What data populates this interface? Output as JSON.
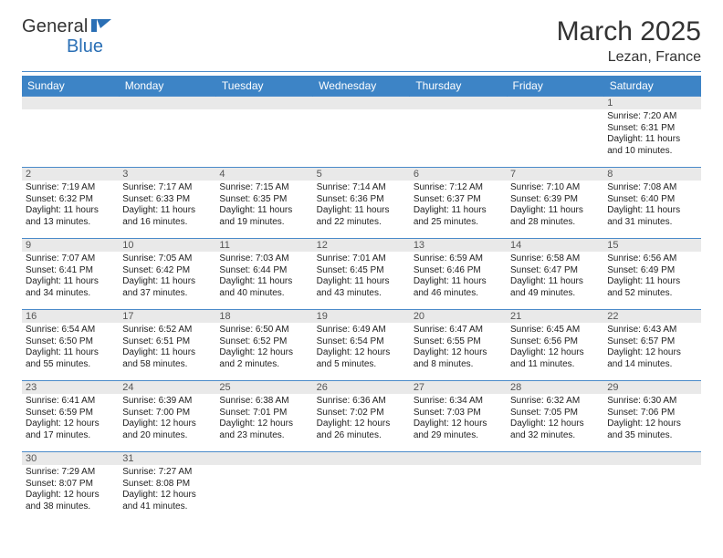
{
  "brand": {
    "part1": "General",
    "part2": "Blue"
  },
  "title": "March 2025",
  "location": "Lezan, France",
  "colors": {
    "header_bg": "#3d84c6",
    "border": "#4a8ac9",
    "daynum_bg": "#e9e9e9",
    "brand_blue": "#2a6fb5"
  },
  "weekdays": [
    "Sunday",
    "Monday",
    "Tuesday",
    "Wednesday",
    "Thursday",
    "Friday",
    "Saturday"
  ],
  "weeks": [
    [
      {
        "n": "",
        "sr": "",
        "ss": "",
        "dl": ""
      },
      {
        "n": "",
        "sr": "",
        "ss": "",
        "dl": ""
      },
      {
        "n": "",
        "sr": "",
        "ss": "",
        "dl": ""
      },
      {
        "n": "",
        "sr": "",
        "ss": "",
        "dl": ""
      },
      {
        "n": "",
        "sr": "",
        "ss": "",
        "dl": ""
      },
      {
        "n": "",
        "sr": "",
        "ss": "",
        "dl": ""
      },
      {
        "n": "1",
        "sr": "Sunrise: 7:20 AM",
        "ss": "Sunset: 6:31 PM",
        "dl": "Daylight: 11 hours and 10 minutes."
      }
    ],
    [
      {
        "n": "2",
        "sr": "Sunrise: 7:19 AM",
        "ss": "Sunset: 6:32 PM",
        "dl": "Daylight: 11 hours and 13 minutes."
      },
      {
        "n": "3",
        "sr": "Sunrise: 7:17 AM",
        "ss": "Sunset: 6:33 PM",
        "dl": "Daylight: 11 hours and 16 minutes."
      },
      {
        "n": "4",
        "sr": "Sunrise: 7:15 AM",
        "ss": "Sunset: 6:35 PM",
        "dl": "Daylight: 11 hours and 19 minutes."
      },
      {
        "n": "5",
        "sr": "Sunrise: 7:14 AM",
        "ss": "Sunset: 6:36 PM",
        "dl": "Daylight: 11 hours and 22 minutes."
      },
      {
        "n": "6",
        "sr": "Sunrise: 7:12 AM",
        "ss": "Sunset: 6:37 PM",
        "dl": "Daylight: 11 hours and 25 minutes."
      },
      {
        "n": "7",
        "sr": "Sunrise: 7:10 AM",
        "ss": "Sunset: 6:39 PM",
        "dl": "Daylight: 11 hours and 28 minutes."
      },
      {
        "n": "8",
        "sr": "Sunrise: 7:08 AM",
        "ss": "Sunset: 6:40 PM",
        "dl": "Daylight: 11 hours and 31 minutes."
      }
    ],
    [
      {
        "n": "9",
        "sr": "Sunrise: 7:07 AM",
        "ss": "Sunset: 6:41 PM",
        "dl": "Daylight: 11 hours and 34 minutes."
      },
      {
        "n": "10",
        "sr": "Sunrise: 7:05 AM",
        "ss": "Sunset: 6:42 PM",
        "dl": "Daylight: 11 hours and 37 minutes."
      },
      {
        "n": "11",
        "sr": "Sunrise: 7:03 AM",
        "ss": "Sunset: 6:44 PM",
        "dl": "Daylight: 11 hours and 40 minutes."
      },
      {
        "n": "12",
        "sr": "Sunrise: 7:01 AM",
        "ss": "Sunset: 6:45 PM",
        "dl": "Daylight: 11 hours and 43 minutes."
      },
      {
        "n": "13",
        "sr": "Sunrise: 6:59 AM",
        "ss": "Sunset: 6:46 PM",
        "dl": "Daylight: 11 hours and 46 minutes."
      },
      {
        "n": "14",
        "sr": "Sunrise: 6:58 AM",
        "ss": "Sunset: 6:47 PM",
        "dl": "Daylight: 11 hours and 49 minutes."
      },
      {
        "n": "15",
        "sr": "Sunrise: 6:56 AM",
        "ss": "Sunset: 6:49 PM",
        "dl": "Daylight: 11 hours and 52 minutes."
      }
    ],
    [
      {
        "n": "16",
        "sr": "Sunrise: 6:54 AM",
        "ss": "Sunset: 6:50 PM",
        "dl": "Daylight: 11 hours and 55 minutes."
      },
      {
        "n": "17",
        "sr": "Sunrise: 6:52 AM",
        "ss": "Sunset: 6:51 PM",
        "dl": "Daylight: 11 hours and 58 minutes."
      },
      {
        "n": "18",
        "sr": "Sunrise: 6:50 AM",
        "ss": "Sunset: 6:52 PM",
        "dl": "Daylight: 12 hours and 2 minutes."
      },
      {
        "n": "19",
        "sr": "Sunrise: 6:49 AM",
        "ss": "Sunset: 6:54 PM",
        "dl": "Daylight: 12 hours and 5 minutes."
      },
      {
        "n": "20",
        "sr": "Sunrise: 6:47 AM",
        "ss": "Sunset: 6:55 PM",
        "dl": "Daylight: 12 hours and 8 minutes."
      },
      {
        "n": "21",
        "sr": "Sunrise: 6:45 AM",
        "ss": "Sunset: 6:56 PM",
        "dl": "Daylight: 12 hours and 11 minutes."
      },
      {
        "n": "22",
        "sr": "Sunrise: 6:43 AM",
        "ss": "Sunset: 6:57 PM",
        "dl": "Daylight: 12 hours and 14 minutes."
      }
    ],
    [
      {
        "n": "23",
        "sr": "Sunrise: 6:41 AM",
        "ss": "Sunset: 6:59 PM",
        "dl": "Daylight: 12 hours and 17 minutes."
      },
      {
        "n": "24",
        "sr": "Sunrise: 6:39 AM",
        "ss": "Sunset: 7:00 PM",
        "dl": "Daylight: 12 hours and 20 minutes."
      },
      {
        "n": "25",
        "sr": "Sunrise: 6:38 AM",
        "ss": "Sunset: 7:01 PM",
        "dl": "Daylight: 12 hours and 23 minutes."
      },
      {
        "n": "26",
        "sr": "Sunrise: 6:36 AM",
        "ss": "Sunset: 7:02 PM",
        "dl": "Daylight: 12 hours and 26 minutes."
      },
      {
        "n": "27",
        "sr": "Sunrise: 6:34 AM",
        "ss": "Sunset: 7:03 PM",
        "dl": "Daylight: 12 hours and 29 minutes."
      },
      {
        "n": "28",
        "sr": "Sunrise: 6:32 AM",
        "ss": "Sunset: 7:05 PM",
        "dl": "Daylight: 12 hours and 32 minutes."
      },
      {
        "n": "29",
        "sr": "Sunrise: 6:30 AM",
        "ss": "Sunset: 7:06 PM",
        "dl": "Daylight: 12 hours and 35 minutes."
      }
    ],
    [
      {
        "n": "30",
        "sr": "Sunrise: 7:29 AM",
        "ss": "Sunset: 8:07 PM",
        "dl": "Daylight: 12 hours and 38 minutes."
      },
      {
        "n": "31",
        "sr": "Sunrise: 7:27 AM",
        "ss": "Sunset: 8:08 PM",
        "dl": "Daylight: 12 hours and 41 minutes."
      },
      {
        "n": "",
        "sr": "",
        "ss": "",
        "dl": ""
      },
      {
        "n": "",
        "sr": "",
        "ss": "",
        "dl": ""
      },
      {
        "n": "",
        "sr": "",
        "ss": "",
        "dl": ""
      },
      {
        "n": "",
        "sr": "",
        "ss": "",
        "dl": ""
      },
      {
        "n": "",
        "sr": "",
        "ss": "",
        "dl": ""
      }
    ]
  ]
}
